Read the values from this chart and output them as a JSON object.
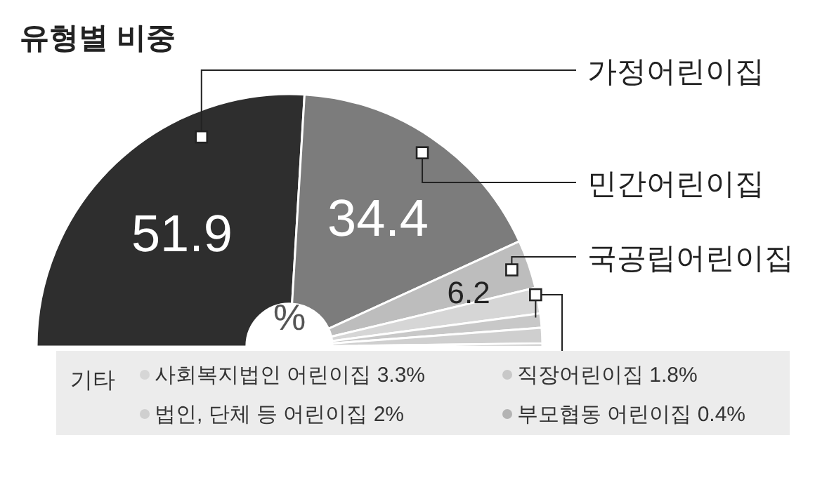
{
  "chart_data": {
    "type": "donut",
    "title": "유형별 비중",
    "legend_title": "기타",
    "categories": [
      "가정어린이집",
      "민간어린이집",
      "국공립어린이집",
      "사회복지법인 어린이집",
      "직장어린이집",
      "법인, 단체 등 어린이집",
      "부모협동 어린이집"
    ],
    "values": [
      51.9,
      34.4,
      6.2,
      3.3,
      1.8,
      2,
      0.4
    ],
    "value_labels": [
      "51.9",
      "34.4",
      "6.2",
      "3.3%",
      "1.8%",
      "2%",
      "0.4%"
    ],
    "colors": [
      "#2e2e2e",
      "#7c7c7c",
      "#bdbdbd",
      "#d6d6d6",
      "#c8c8c8",
      "#cfcfcf",
      "#b3b3b3"
    ],
    "annotations": [
      "%"
    ],
    "legend": "bottom"
  }
}
